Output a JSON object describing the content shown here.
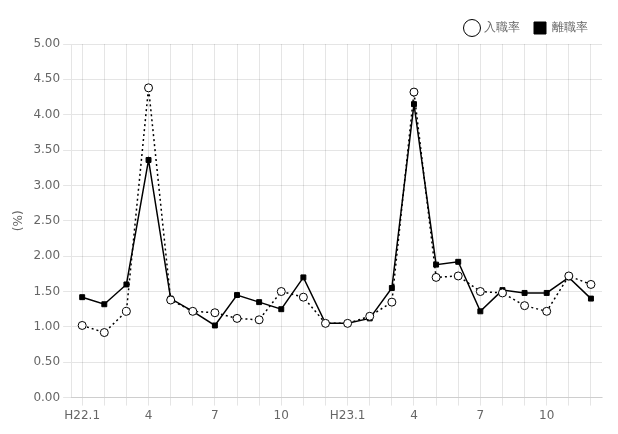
{
  "chart_data": {
    "type": "line",
    "ylabel": "(%)",
    "categories": [
      "H22.1",
      null,
      null,
      "4",
      null,
      null,
      "7",
      null,
      null,
      "10",
      null,
      null,
      "H23.1",
      null,
      null,
      "4",
      null,
      null,
      "7",
      null,
      null,
      "10",
      null,
      null
    ],
    "series": [
      {
        "name": "入職率",
        "color": "#000000",
        "marker": "circle",
        "line_style": "dotted",
        "values": [
          1.02,
          0.92,
          1.22,
          4.38,
          1.38,
          1.22,
          1.2,
          1.12,
          1.1,
          1.5,
          1.42,
          1.05,
          1.05,
          1.15,
          1.35,
          4.32,
          1.7,
          1.72,
          1.5,
          1.48,
          1.3,
          1.22,
          1.72,
          1.6
        ]
      },
      {
        "name": "離職率",
        "color": "#000000",
        "marker": "square",
        "line_style": "solid",
        "values": [
          1.42,
          1.32,
          1.6,
          3.36,
          1.4,
          1.22,
          1.02,
          1.45,
          1.35,
          1.25,
          1.7,
          1.05,
          1.05,
          1.12,
          1.55,
          4.15,
          1.88,
          1.92,
          1.22,
          1.52,
          1.48,
          1.48,
          1.7,
          1.4
        ]
      }
    ],
    "ylim": [
      0.0,
      5.0
    ],
    "yticks": [
      {
        "value": 0.0,
        "label": "0.00"
      },
      {
        "value": 0.5,
        "label": "0.50"
      },
      {
        "value": 1.0,
        "label": "1.00"
      },
      {
        "value": 1.5,
        "label": "1.50"
      },
      {
        "value": 2.0,
        "label": "2.00"
      },
      {
        "value": 2.5,
        "label": "2.50"
      },
      {
        "value": 3.0,
        "label": "3.00"
      },
      {
        "value": 3.5,
        "label": "3.50"
      },
      {
        "value": 4.0,
        "label": "4.00"
      },
      {
        "value": 4.5,
        "label": "4.50"
      },
      {
        "value": 5.0,
        "label": "5.00"
      }
    ],
    "grid": true,
    "legend": "upper right"
  }
}
